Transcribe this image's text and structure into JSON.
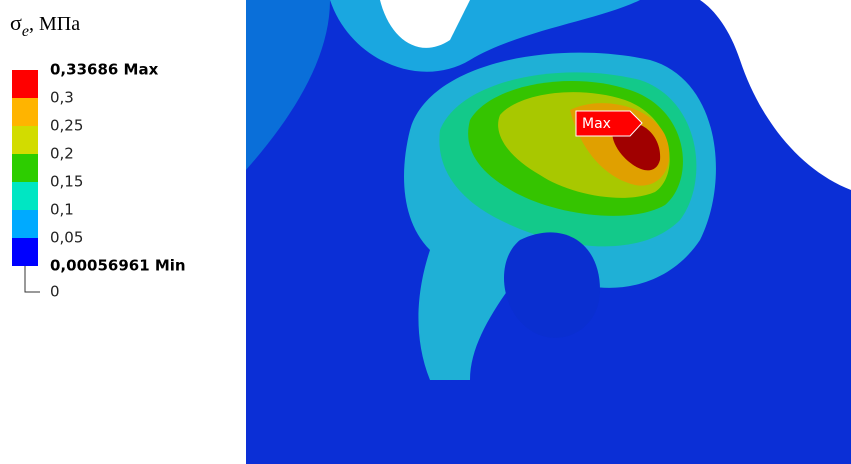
{
  "legend": {
    "title": {
      "symbol": "σ",
      "subscript": "e",
      "unit": ", МПа"
    },
    "levels": [
      {
        "label": "0,33686 Max",
        "color": "#ff0000"
      },
      {
        "label": "0,3",
        "color": "#ffb400"
      },
      {
        "label": "0,25",
        "color": "#d2dc00"
      },
      {
        "label": "0,2",
        "color": "#2dcd00"
      },
      {
        "label": "0,15",
        "color": "#00e6c3"
      },
      {
        "label": "0,1",
        "color": "#00aaff"
      },
      {
        "label": "0,05",
        "color": "#0000ff"
      },
      {
        "label": "0,00056961 Min",
        "color": null
      }
    ],
    "zero_label": "0"
  },
  "viewport": {
    "max_marker": "Max"
  }
}
